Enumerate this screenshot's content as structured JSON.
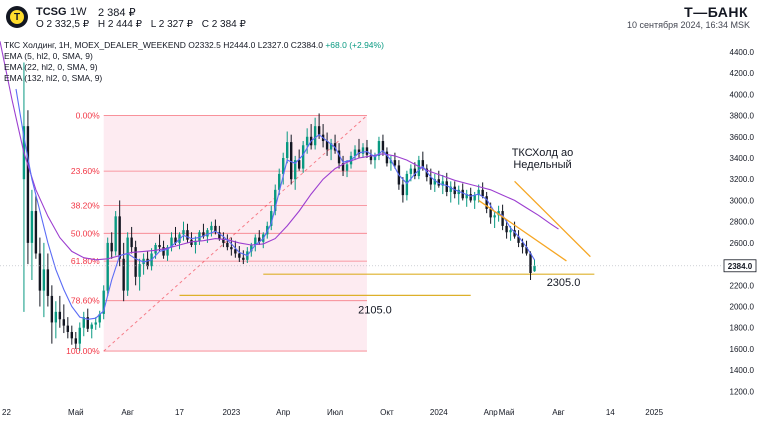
{
  "header": {
    "ticker": "TCSG",
    "timeframe": "1W",
    "last_price": "2 384 ₽",
    "ohlc": [
      "O 2 332,5 ₽",
      "H 2 444 ₽",
      "L 2 327 ₽",
      "C 2 384 ₽"
    ],
    "brand": "Т—БАНК",
    "datetime": "10 сентября 2024, 16:34 MSK"
  },
  "legend": {
    "main_prefix": "ТКС Холдинг, 1Н, MOEX_DEALER_WEEKEND",
    "main_values": "O2332.5 H2444.0 L2327.0 C2384.0",
    "main_change": "+68.0 (+2.94%)",
    "ema1": "EMA (5, hl2, 0, SMA, 9)",
    "ema2": "EMA (22, hl2, 0, SMA, 9)",
    "ema3": "EMA (132, hl2, 0, SMA, 9)"
  },
  "colors": {
    "up": "#089981",
    "down": "#131722",
    "fib": "#f23645",
    "fib_fill": "#fce4ec",
    "ema_fast": "#5b6cf5",
    "ema_slow": "#9c3ed0",
    "trend": "#f6a623",
    "level": "#ddb02a"
  },
  "chart_data": {
    "type": "candlestick",
    "y_axis": {
      "min": 1100,
      "max": 4550,
      "ticks": [
        "4400.0",
        "4200.0",
        "4000.0",
        "3800.0",
        "3600.0",
        "3400.0",
        "3200.0",
        "3000.0",
        "2800.0",
        "2600.0",
        "2400.0",
        "2200.0",
        "2000.0",
        "1800.0",
        "1600.0",
        "1400.0",
        "1200.0"
      ],
      "current_price": "2384.0"
    },
    "x_axis": {
      "start_index": -40,
      "end_index": 141,
      "ticks": [
        {
          "label": "22",
          "index": -40
        },
        {
          "label": "Май",
          "index": -21
        },
        {
          "label": "Авг",
          "index": -8
        },
        {
          "label": "17",
          "index": 5
        },
        {
          "label": "2023",
          "index": 18
        },
        {
          "label": "Апр",
          "index": 31
        },
        {
          "label": "Июл",
          "index": 44
        },
        {
          "label": "Окт",
          "index": 57
        },
        {
          "label": "2024",
          "index": 70
        },
        {
          "label": "Апр",
          "index": 83
        },
        {
          "label": "Май",
          "index": 87
        },
        {
          "label": "Авг",
          "index": 100
        },
        {
          "label": "14",
          "index": 113
        },
        {
          "label": "2025",
          "index": 124
        }
      ]
    },
    "fibonacci": {
      "start_index": -14,
      "end_index": 52,
      "high": 3800,
      "low": 1580,
      "levels": [
        {
          "ratio": 0,
          "label": "0.00%"
        },
        {
          "ratio": 0.236,
          "label": "23.60%"
        },
        {
          "ratio": 0.382,
          "label": "38.20%"
        },
        {
          "ratio": 0.5,
          "label": "50.00%"
        },
        {
          "ratio": 0.618,
          "label": "61.80%"
        },
        {
          "ratio": 0.786,
          "label": "78.60%"
        },
        {
          "ratio": 1,
          "label": "100.00%"
        }
      ]
    },
    "levels": [
      {
        "value": 2305,
        "label": "2305.0",
        "from_index": 26,
        "to_index": 109
      },
      {
        "value": 2105,
        "label": "2105.0",
        "from_index": 5,
        "to_index": 78
      }
    ],
    "trendlines": [
      {
        "x1": 89,
        "y1": 3180,
        "x2": 108,
        "y2": 2470
      },
      {
        "x1": 80,
        "y1": 3000,
        "x2": 102,
        "y2": 2430
      }
    ],
    "annotation": {
      "line1": "ТКСХолд ао",
      "line2": "Недельный",
      "index": 96,
      "value": 3420
    },
    "ohlc": [
      [
        -34,
        3200,
        4300,
        1950,
        3700
      ],
      [
        -33,
        3700,
        3850,
        2400,
        2600
      ],
      [
        -32,
        2600,
        3100,
        2250,
        2900
      ],
      [
        -31,
        2900,
        3050,
        2450,
        2500
      ],
      [
        -30,
        2500,
        2650,
        2000,
        2150
      ],
      [
        -29,
        2150,
        2600,
        1900,
        2350
      ],
      [
        -28,
        2350,
        2500,
        2000,
        2100
      ],
      [
        -27,
        2100,
        2200,
        1650,
        1850
      ],
      [
        -26,
        1850,
        2050,
        1700,
        1950
      ],
      [
        -25,
        1950,
        2100,
        1800,
        1880
      ],
      [
        -24,
        1880,
        2020,
        1750,
        1820
      ],
      [
        -23,
        1820,
        1900,
        1700,
        1760
      ],
      [
        -22,
        1760,
        1820,
        1640,
        1700
      ],
      [
        -21,
        1700,
        1760,
        1600,
        1650
      ],
      [
        -20,
        1650,
        1850,
        1580,
        1800
      ],
      [
        -19,
        1800,
        1950,
        1720,
        1900
      ],
      [
        -18,
        1900,
        1980,
        1760,
        1790
      ],
      [
        -17,
        1790,
        1850,
        1700,
        1830
      ],
      [
        -16,
        1830,
        1900,
        1780,
        1850
      ],
      [
        -15,
        1850,
        1960,
        1800,
        1930
      ],
      [
        -14,
        1930,
        2200,
        1880,
        2150
      ],
      [
        -13,
        2150,
        2650,
        2100,
        2600
      ],
      [
        -12,
        2600,
        2700,
        2450,
        2520
      ],
      [
        -11,
        2520,
        2900,
        2480,
        2850
      ],
      [
        -10,
        2850,
        3000,
        2380,
        2450
      ],
      [
        -9,
        2450,
        2600,
        2050,
        2150
      ],
      [
        -8,
        2150,
        2700,
        2100,
        2650
      ],
      [
        -7,
        2650,
        2750,
        2500,
        2560
      ],
      [
        -6,
        2560,
        2620,
        2200,
        2280
      ],
      [
        -5,
        2280,
        2450,
        2150,
        2400
      ],
      [
        -4,
        2400,
        2500,
        2300,
        2450
      ],
      [
        -3,
        2450,
        2520,
        2350,
        2380
      ],
      [
        -2,
        2380,
        2550,
        2340,
        2500
      ],
      [
        -1,
        2500,
        2600,
        2450,
        2580
      ],
      [
        0,
        2580,
        2680,
        2520,
        2560
      ],
      [
        1,
        2560,
        2620,
        2450,
        2480
      ],
      [
        2,
        2480,
        2580,
        2430,
        2560
      ],
      [
        3,
        2560,
        2700,
        2520,
        2650
      ],
      [
        4,
        2650,
        2750,
        2580,
        2600
      ],
      [
        5,
        2600,
        2700,
        2540,
        2680
      ],
      [
        6,
        2680,
        2800,
        2620,
        2720
      ],
      [
        7,
        2720,
        2780,
        2600,
        2630
      ],
      [
        8,
        2630,
        2700,
        2560,
        2580
      ],
      [
        9,
        2580,
        2660,
        2500,
        2620
      ],
      [
        10,
        2620,
        2720,
        2580,
        2700
      ],
      [
        11,
        2700,
        2780,
        2640,
        2660
      ],
      [
        12,
        2660,
        2740,
        2600,
        2720
      ],
      [
        13,
        2720,
        2800,
        2660,
        2760
      ],
      [
        14,
        2760,
        2820,
        2680,
        2700
      ],
      [
        15,
        2700,
        2760,
        2620,
        2640
      ],
      [
        16,
        2640,
        2700,
        2560,
        2600
      ],
      [
        17,
        2600,
        2680,
        2530,
        2560
      ],
      [
        18,
        2560,
        2650,
        2480,
        2540
      ],
      [
        19,
        2540,
        2620,
        2460,
        2500
      ],
      [
        20,
        2500,
        2570,
        2420,
        2460
      ],
      [
        21,
        2460,
        2530,
        2400,
        2440
      ],
      [
        22,
        2440,
        2560,
        2410,
        2520
      ],
      [
        23,
        2520,
        2600,
        2470,
        2580
      ],
      [
        24,
        2580,
        2680,
        2520,
        2650
      ],
      [
        25,
        2650,
        2720,
        2580,
        2610
      ],
      [
        26,
        2610,
        2700,
        2550,
        2680
      ],
      [
        27,
        2680,
        2800,
        2640,
        2760
      ],
      [
        28,
        2760,
        2950,
        2720,
        2900
      ],
      [
        29,
        2900,
        3150,
        2860,
        3100
      ],
      [
        30,
        3100,
        3300,
        3050,
        3250
      ],
      [
        31,
        3250,
        3450,
        3150,
        3400
      ],
      [
        32,
        3400,
        3650,
        3350,
        3550
      ],
      [
        33,
        3550,
        3620,
        3150,
        3200
      ],
      [
        34,
        3200,
        3420,
        3100,
        3380
      ],
      [
        35,
        3380,
        3480,
        3280,
        3300
      ],
      [
        36,
        3300,
        3560,
        3260,
        3520
      ],
      [
        37,
        3520,
        3680,
        3440,
        3600
      ],
      [
        38,
        3600,
        3720,
        3480,
        3520
      ],
      [
        39,
        3520,
        3780,
        3480,
        3700
      ],
      [
        40,
        3700,
        3820,
        3580,
        3620
      ],
      [
        41,
        3620,
        3720,
        3500,
        3560
      ],
      [
        42,
        3560,
        3640,
        3420,
        3480
      ],
      [
        43,
        3480,
        3580,
        3380,
        3540
      ],
      [
        44,
        3540,
        3620,
        3440,
        3470
      ],
      [
        45,
        3470,
        3540,
        3300,
        3350
      ],
      [
        46,
        3350,
        3420,
        3230,
        3280
      ],
      [
        47,
        3280,
        3380,
        3220,
        3340
      ],
      [
        48,
        3340,
        3460,
        3300,
        3420
      ],
      [
        49,
        3420,
        3520,
        3380,
        3480
      ],
      [
        50,
        3480,
        3580,
        3400,
        3440
      ],
      [
        51,
        3440,
        3540,
        3400,
        3500
      ],
      [
        52,
        3500,
        3570,
        3400,
        3430
      ],
      [
        53,
        3430,
        3480,
        3340,
        3380
      ],
      [
        54,
        3380,
        3450,
        3300,
        3420
      ],
      [
        55,
        3420,
        3600,
        3380,
        3560
      ],
      [
        56,
        3560,
        3620,
        3420,
        3460
      ],
      [
        57,
        3460,
        3500,
        3320,
        3350
      ],
      [
        58,
        3350,
        3420,
        3280,
        3380
      ],
      [
        59,
        3380,
        3450,
        3300,
        3330
      ],
      [
        60,
        3330,
        3380,
        3100,
        3150
      ],
      [
        61,
        3150,
        3220,
        2980,
        3050
      ],
      [
        62,
        3050,
        3280,
        3000,
        3250
      ],
      [
        63,
        3250,
        3340,
        3180,
        3300
      ],
      [
        64,
        3300,
        3360,
        3200,
        3230
      ],
      [
        65,
        3230,
        3420,
        3200,
        3380
      ],
      [
        66,
        3380,
        3460,
        3280,
        3300
      ],
      [
        67,
        3300,
        3340,
        3180,
        3220
      ],
      [
        68,
        3220,
        3300,
        3100,
        3150
      ],
      [
        69,
        3150,
        3250,
        3080,
        3200
      ],
      [
        70,
        3200,
        3280,
        3120,
        3140
      ],
      [
        71,
        3140,
        3240,
        3060,
        3180
      ],
      [
        72,
        3180,
        3260,
        3040,
        3080
      ],
      [
        73,
        3080,
        3180,
        2980,
        3130
      ],
      [
        74,
        3130,
        3180,
        3020,
        3060
      ],
      [
        75,
        3060,
        3140,
        2960,
        3100
      ],
      [
        76,
        3100,
        3160,
        3000,
        3020
      ],
      [
        77,
        3020,
        3100,
        2940,
        3060
      ],
      [
        78,
        3060,
        3120,
        2980,
        3000
      ],
      [
        79,
        3000,
        3080,
        2920,
        3050
      ],
      [
        80,
        3050,
        3150,
        2980,
        3100
      ],
      [
        81,
        3100,
        3170,
        3020,
        3040
      ],
      [
        82,
        3040,
        3080,
        2880,
        2920
      ],
      [
        83,
        2920,
        2980,
        2780,
        2840
      ],
      [
        84,
        2840,
        2900,
        2740,
        2860
      ],
      [
        85,
        2860,
        2950,
        2800,
        2900
      ],
      [
        86,
        2900,
        2960,
        2720,
        2760
      ],
      [
        87,
        2760,
        2820,
        2640,
        2700
      ],
      [
        88,
        2700,
        2760,
        2620,
        2720
      ],
      [
        89,
        2720,
        2800,
        2640,
        2660
      ],
      [
        90,
        2660,
        2720,
        2560,
        2600
      ],
      [
        91,
        2600,
        2640,
        2500,
        2560
      ],
      [
        92,
        2560,
        2620,
        2480,
        2500
      ],
      [
        93,
        2500,
        2520,
        2250,
        2316
      ],
      [
        94,
        2332.5,
        2444,
        2327,
        2384
      ]
    ],
    "ema_fast": [
      [
        -36,
        4050
      ],
      [
        -34,
        3600
      ],
      [
        -32,
        3200
      ],
      [
        -30,
        2900
      ],
      [
        -28,
        2600
      ],
      [
        -26,
        2350
      ],
      [
        -24,
        2160
      ],
      [
        -22,
        2000
      ],
      [
        -20,
        1900
      ],
      [
        -18,
        1880
      ],
      [
        -16,
        1890
      ],
      [
        -14,
        1960
      ],
      [
        -12,
        2250
      ],
      [
        -10,
        2480
      ],
      [
        -8,
        2500
      ],
      [
        -6,
        2450
      ],
      [
        -4,
        2420
      ],
      [
        -2,
        2440
      ],
      [
        0,
        2520
      ],
      [
        2,
        2540
      ],
      [
        4,
        2600
      ],
      [
        6,
        2670
      ],
      [
        8,
        2640
      ],
      [
        10,
        2650
      ],
      [
        12,
        2680
      ],
      [
        14,
        2710
      ],
      [
        16,
        2660
      ],
      [
        18,
        2590
      ],
      [
        20,
        2510
      ],
      [
        22,
        2480
      ],
      [
        24,
        2580
      ],
      [
        26,
        2640
      ],
      [
        28,
        2780
      ],
      [
        30,
        3080
      ],
      [
        32,
        3380
      ],
      [
        34,
        3350
      ],
      [
        36,
        3430
      ],
      [
        38,
        3560
      ],
      [
        40,
        3620
      ],
      [
        42,
        3560
      ],
      [
        44,
        3500
      ],
      [
        46,
        3360
      ],
      [
        48,
        3380
      ],
      [
        50,
        3450
      ],
      [
        52,
        3460
      ],
      [
        54,
        3410
      ],
      [
        56,
        3470
      ],
      [
        58,
        3380
      ],
      [
        60,
        3240
      ],
      [
        62,
        3160
      ],
      [
        64,
        3250
      ],
      [
        66,
        3320
      ],
      [
        68,
        3220
      ],
      [
        70,
        3160
      ],
      [
        72,
        3140
      ],
      [
        74,
        3100
      ],
      [
        76,
        3070
      ],
      [
        78,
        3040
      ],
      [
        80,
        3060
      ],
      [
        82,
        3010
      ],
      [
        84,
        2890
      ],
      [
        86,
        2860
      ],
      [
        88,
        2740
      ],
      [
        90,
        2660
      ],
      [
        92,
        2560
      ],
      [
        94,
        2440
      ]
    ],
    "ema_slow": [
      [
        -40,
        4500
      ],
      [
        -37,
        3950
      ],
      [
        -34,
        3450
      ],
      [
        -31,
        3100
      ],
      [
        -28,
        2850
      ],
      [
        -25,
        2650
      ],
      [
        -22,
        2520
      ],
      [
        -19,
        2460
      ],
      [
        -16,
        2440
      ],
      [
        -13,
        2450
      ],
      [
        -10,
        2480
      ],
      [
        -7,
        2510
      ],
      [
        -4,
        2520
      ],
      [
        -1,
        2530
      ],
      [
        2,
        2550
      ],
      [
        5,
        2580
      ],
      [
        8,
        2610
      ],
      [
        11,
        2620
      ],
      [
        14,
        2640
      ],
      [
        17,
        2630
      ],
      [
        20,
        2600
      ],
      [
        23,
        2580
      ],
      [
        26,
        2590
      ],
      [
        29,
        2640
      ],
      [
        32,
        2760
      ],
      [
        35,
        2900
      ],
      [
        38,
        3060
      ],
      [
        41,
        3200
      ],
      [
        44,
        3300
      ],
      [
        47,
        3360
      ],
      [
        50,
        3400
      ],
      [
        53,
        3420
      ],
      [
        56,
        3440
      ],
      [
        59,
        3420
      ],
      [
        62,
        3380
      ],
      [
        65,
        3320
      ],
      [
        68,
        3270
      ],
      [
        71,
        3230
      ],
      [
        74,
        3190
      ],
      [
        77,
        3160
      ],
      [
        80,
        3130
      ],
      [
        83,
        3100
      ],
      [
        86,
        3050
      ],
      [
        89,
        3000
      ],
      [
        92,
        2930
      ],
      [
        95,
        2860
      ],
      [
        98,
        2780
      ],
      [
        100,
        2730
      ]
    ]
  }
}
